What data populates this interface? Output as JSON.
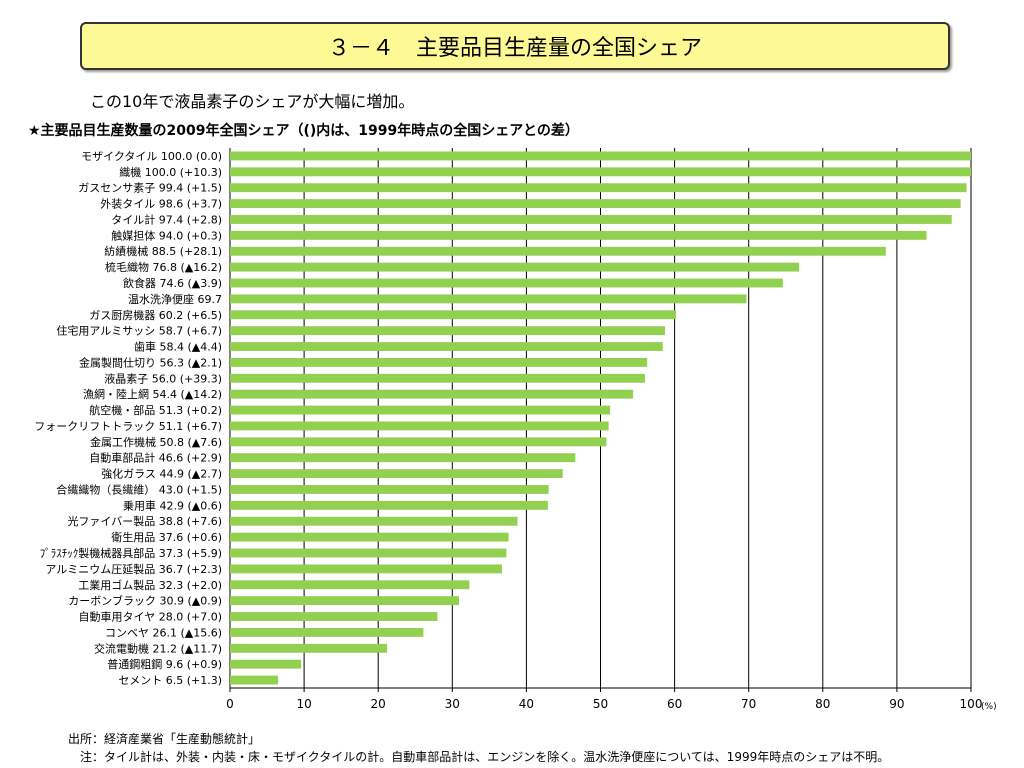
{
  "header": {
    "title": "３－４　主要品目生産量の全国シェア",
    "subtitle": "この10年で液晶素子のシェアが大幅に増加。"
  },
  "colors": {
    "bar": "#92d050",
    "grid": "#000000",
    "title_bg": "#fdfa96"
  },
  "chart_data": {
    "type": "bar",
    "orientation": "horizontal",
    "title": "★主要品目生産数量の2009年全国シェア（()内は、1999年時点の全国シェアとの差）",
    "categories": [
      "モザイクタイル  100.0  (0.0)",
      "織機  100.0 (+10.3)",
      "ガスセンサ素子  99.4  (+1.5)",
      "外装タイル  98.6  (+3.7)",
      "タイル計    97.4  (+2.8)",
      "触媒担体  94.0  (+0.3)",
      "紡績機械  88.5  (+28.1)",
      "梳毛織物  76.8  (▲16.2)",
      "飲食器  74.6  (▲3.9)",
      "温水洗浄便座  69.7",
      "ガス厨房機器  60.2  (+6.5)",
      "住宅用アルミサッシ  58.7  (+6.7)",
      "歯車  58.4  (▲4.4)",
      "金属製間仕切り  56.3  (▲2.1)",
      "液晶素子   56.0  (+39.3)",
      "漁網・陸上網  54.4  (▲14.2)",
      "航空機・部品  51.3  (+0.2)",
      "フォークリフトトラック  51.1  (+6.7)",
      "金属工作機械  50.8  (▲7.6)",
      "自動車部品計  46.6  (+2.9)",
      "強化ガラス  44.9  (▲2.7)",
      "合繊織物（長繊維）  43.0  (+1.5)",
      "乗用車  42.9  (▲0.6)",
      "光ファイバー製品  38.8  (+7.6)",
      "衛生用品  37.6  (+0.6)",
      "ﾌﾟﾗｽﾁｯｸ製機械器具部品  37.3  (+5.9)",
      "アルミニウム圧延製品  36.7  (+2.3)",
      "工業用ゴム製品  32.3  (+2.0)",
      "カーボンブラック  30.9  (▲0.9)",
      "自動車用タイヤ  28.0  (+7.0)",
      "コンベヤ  26.1  (▲15.6)",
      "交流電動機  21.2  (▲11.7)",
      "普通鋼粗鋼  9.6  (+0.9)",
      "セメント  6.5  (+1.3)"
    ],
    "values": [
      100.0,
      100.0,
      99.4,
      98.6,
      97.4,
      94.0,
      88.5,
      76.8,
      74.6,
      69.7,
      60.2,
      58.7,
      58.4,
      56.3,
      56.0,
      54.4,
      51.3,
      51.1,
      50.8,
      46.6,
      44.9,
      43.0,
      42.9,
      38.8,
      37.6,
      37.3,
      36.7,
      32.3,
      30.9,
      28.0,
      26.1,
      21.2,
      9.6,
      6.5
    ],
    "xlim": [
      0,
      100
    ],
    "xticks": [
      "0",
      "10",
      "20",
      "30",
      "40",
      "50",
      "60",
      "70",
      "80",
      "90",
      "100"
    ],
    "xunit": "(%)",
    "grid": true,
    "legend": false
  },
  "footer": {
    "source": "出所：経済産業省「生産動態統計」",
    "note": "注：タイル計は、外装・内装・床・モザイクタイルの計。自動車部品計は、エンジンを除く。温水洗浄便座については、1999年時点のシェアは不明。"
  }
}
